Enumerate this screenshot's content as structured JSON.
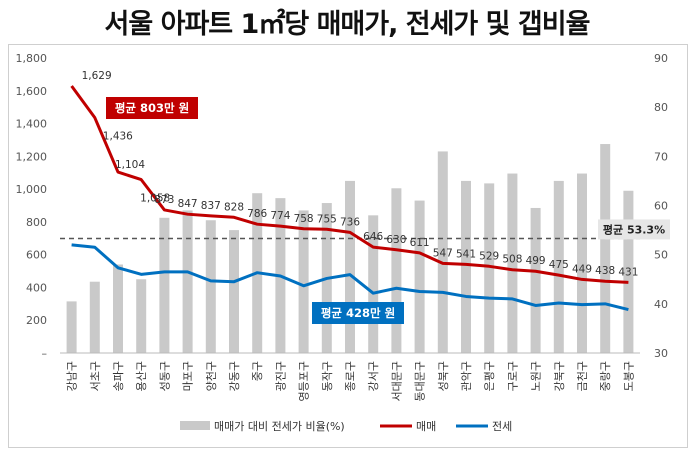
{
  "title": "서울 아파트 1㎡당 매매가, 전세가 및 갭비율",
  "chart_data": {
    "type": "bar+line",
    "categories": [
      "강남구",
      "서초구",
      "송파구",
      "용산구",
      "성동구",
      "마포구",
      "양천구",
      "강동구",
      "중구",
      "광진구",
      "영등포구",
      "동작구",
      "종로구",
      "강서구",
      "서대문구",
      "동대문구",
      "성북구",
      "관악구",
      "은평구",
      "구로구",
      "노원구",
      "강북구",
      "금천구",
      "중랑구",
      "도봉구"
    ],
    "y_left": {
      "min": 0,
      "max": 1800,
      "step": 200,
      "ticks": [
        "–",
        "200",
        "400",
        "600",
        "800",
        "1,000",
        "1,200",
        "1,400",
        "1,600",
        "1,800"
      ]
    },
    "y_right": {
      "min": 30,
      "max": 90,
      "step": 10,
      "ticks": [
        "30",
        "40",
        "50",
        "60",
        "70",
        "80",
        "90"
      ]
    },
    "series": [
      {
        "name": "매매가 대비 전세가 비율(%)",
        "kind": "bar",
        "axis": "right",
        "color": "#c9c9c9",
        "values": [
          40.5,
          44.5,
          48.0,
          45.0,
          57.5,
          59.0,
          57.0,
          55.0,
          62.5,
          61.5,
          59.0,
          60.5,
          65.0,
          58.0,
          63.5,
          61.0,
          71.0,
          65.0,
          64.5,
          66.5,
          59.5,
          65.0,
          66.5,
          72.5,
          63.0
        ]
      },
      {
        "name": "매매",
        "kind": "line",
        "axis": "left",
        "color": "#c00000",
        "values": [
          1629,
          1436,
          1104,
          1058,
          873,
          847,
          837,
          828,
          786,
          774,
          758,
          755,
          736,
          646,
          630,
          611,
          547,
          541,
          529,
          508,
          499,
          475,
          449,
          438,
          431
        ]
      },
      {
        "name": "전세",
        "kind": "line",
        "axis": "left",
        "color": "#0070c0",
        "values": [
          660,
          645,
          520,
          480,
          495,
          495,
          440,
          435,
          490,
          470,
          410,
          455,
          478,
          365,
          395,
          375,
          370,
          345,
          335,
          330,
          290,
          305,
          295,
          300,
          265
        ]
      }
    ],
    "data_labels": [
      "1,629",
      "1,436",
      "1,104",
      "1,058",
      "873",
      "847",
      "837",
      "828",
      "786",
      "774",
      "758",
      "755",
      "736",
      "646",
      "630",
      "611",
      "547",
      "541",
      "529",
      "508",
      "499",
      "475",
      "449",
      "438",
      "431"
    ],
    "reference_line": {
      "value": 53.3,
      "axis": "right",
      "label": "평균 53.3%"
    },
    "annotations": [
      {
        "text": "평균 803만 원",
        "color": "#c00000"
      },
      {
        "text": "평균 428만 원",
        "color": "#0070c0"
      }
    ],
    "legend_position": "bottom",
    "grid": false
  }
}
